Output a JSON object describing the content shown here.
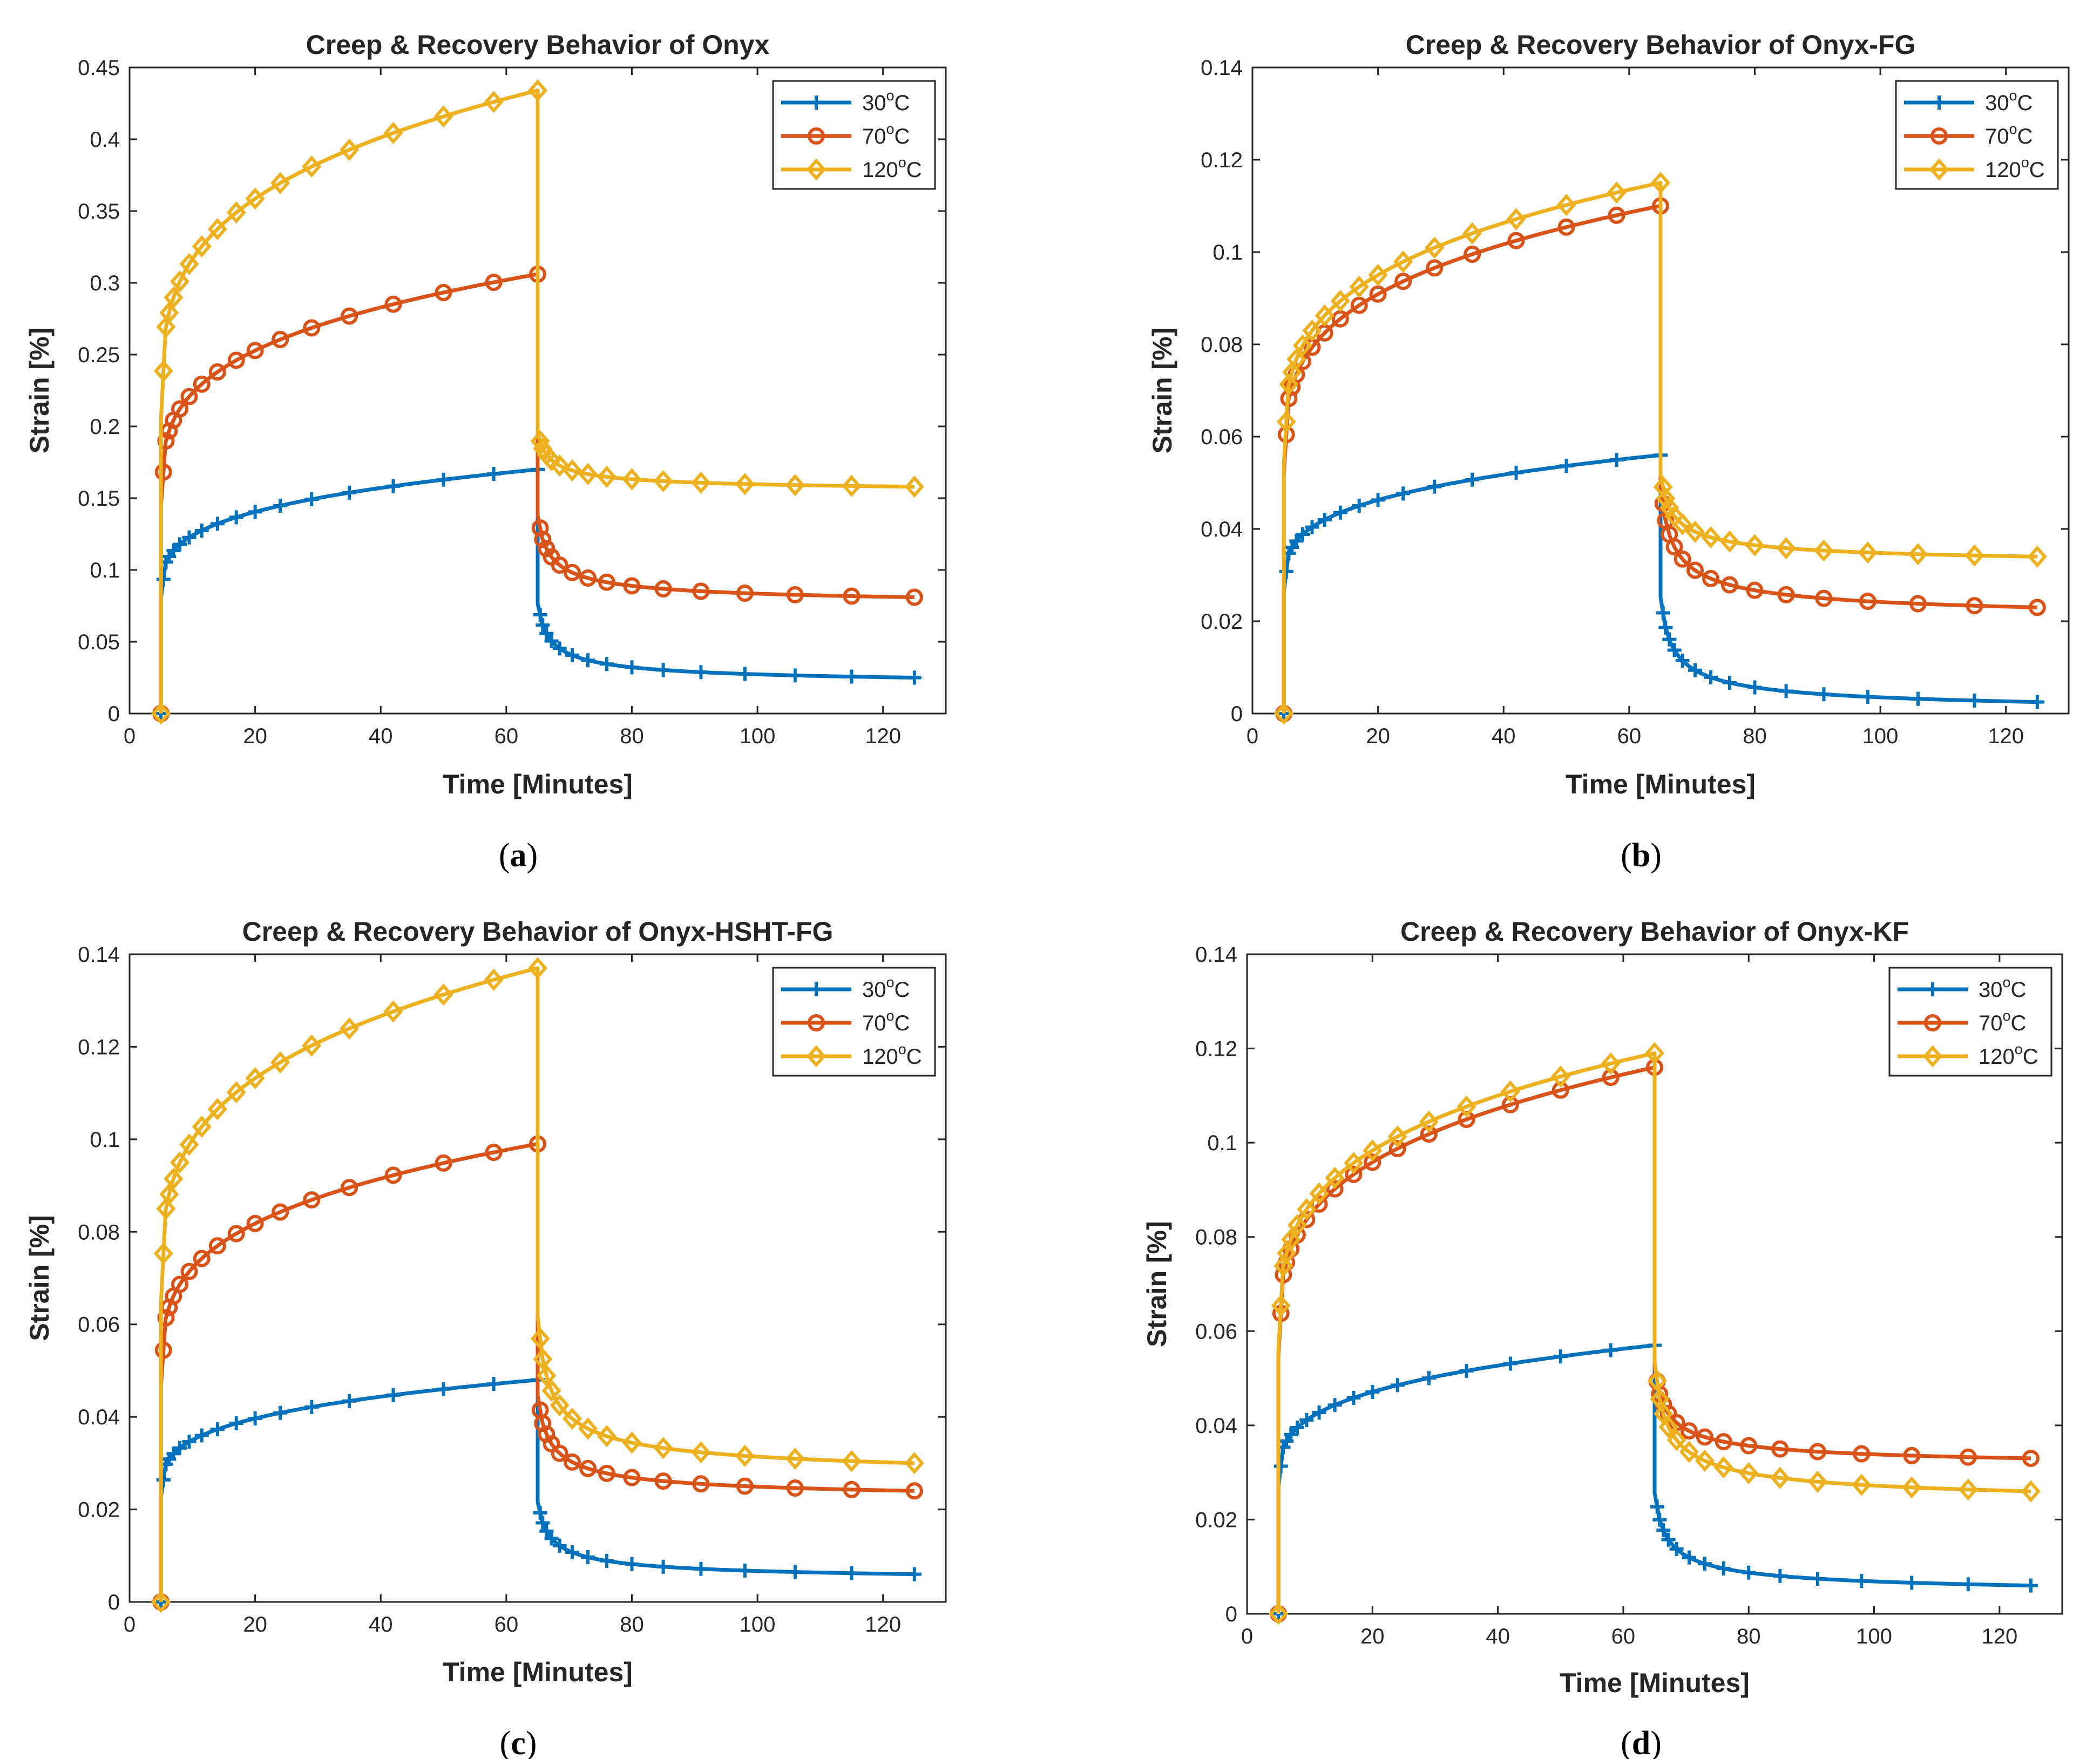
{
  "colors": {
    "c30": "#0072BD",
    "c70": "#D95319",
    "c120": "#EDB120",
    "axis": "#262626",
    "grid": "#262626"
  },
  "chart_data": [
    {
      "type": "line",
      "panel": "a",
      "caption": "a",
      "title": "Creep & Recovery Behavior of Onyx",
      "xlabel": "Time [Minutes]",
      "ylabel": "Strain [%]",
      "xlim": [
        0,
        130
      ],
      "ylim": [
        0,
        0.45
      ],
      "xticks": [
        "0",
        "20",
        "40",
        "60",
        "80",
        "100",
        "120"
      ],
      "yticks": [
        "0",
        "0.05",
        "0.1",
        "0.15",
        "0.2",
        "0.25",
        "0.3",
        "0.35",
        "0.4",
        "0.45"
      ],
      "legend_position": "top-right",
      "series": [
        {
          "name": "30",
          "unit": "C",
          "degree": "o",
          "final": 0.17,
          "recovery": 0.025
        },
        {
          "name": "70",
          "unit": "C",
          "degree": "o",
          "final": 0.306,
          "recovery": 0.081
        },
        {
          "name": "120",
          "unit": "C",
          "degree": "o",
          "final": 0.434,
          "recovery": 0.158
        }
      ]
    },
    {
      "type": "line",
      "panel": "b",
      "caption": "b",
      "title": "Creep & Recovery Behavior of Onyx-FG",
      "xlabel": "Time [Minutes]",
      "ylabel": "Strain [%]",
      "xlim": [
        0,
        130
      ],
      "ylim": [
        0,
        0.14
      ],
      "xticks": [
        "0",
        "20",
        "40",
        "60",
        "80",
        "100",
        "120"
      ],
      "yticks": [
        "0",
        "0.02",
        "0.04",
        "0.06",
        "0.08",
        "0.1",
        "0.12",
        "0.14"
      ],
      "legend_position": "top-right",
      "series": [
        {
          "name": "30",
          "unit": "C",
          "degree": "o",
          "final": 0.056,
          "recovery": 0.0025
        },
        {
          "name": "70",
          "unit": "C",
          "degree": "o",
          "final": 0.11,
          "recovery": 0.023
        },
        {
          "name": "120",
          "unit": "C",
          "degree": "o",
          "final": 0.115,
          "recovery": 0.034
        }
      ]
    },
    {
      "type": "line",
      "panel": "c",
      "caption": "c",
      "title": "Creep & Recovery Behavior of Onyx-HSHT-FG",
      "xlabel": "Time [Minutes]",
      "ylabel": "Strain [%]",
      "xlim": [
        0,
        130
      ],
      "ylim": [
        0,
        0.14
      ],
      "xticks": [
        "0",
        "20",
        "40",
        "60",
        "80",
        "100",
        "120"
      ],
      "yticks": [
        "0",
        "0.02",
        "0.04",
        "0.06",
        "0.08",
        "0.1",
        "0.12",
        "0.14"
      ],
      "legend_position": "top-right",
      "series": [
        {
          "name": "30",
          "unit": "C",
          "degree": "o",
          "final": 0.048,
          "recovery": 0.006
        },
        {
          "name": "70",
          "unit": "C",
          "degree": "o",
          "final": 0.099,
          "recovery": 0.024
        },
        {
          "name": "120",
          "unit": "C",
          "degree": "o",
          "final": 0.137,
          "recovery": 0.03
        }
      ]
    },
    {
      "type": "line",
      "panel": "d",
      "caption": "d",
      "title": "Creep & Recovery Behavior of Onyx-KF",
      "xlabel": "Time [Minutes]",
      "ylabel": "Strain [%]",
      "xlim": [
        0,
        130
      ],
      "ylim": [
        0,
        0.14
      ],
      "xticks": [
        "0",
        "20",
        "40",
        "60",
        "80",
        "100",
        "120"
      ],
      "yticks": [
        "0",
        "0.02",
        "0.04",
        "0.06",
        "0.08",
        "0.1",
        "0.12",
        "0.14"
      ],
      "legend_position": "top-right",
      "series": [
        {
          "name": "30",
          "unit": "C",
          "degree": "o",
          "final": 0.057,
          "recovery": 0.006
        },
        {
          "name": "70",
          "unit": "C",
          "degree": "o",
          "final": 0.116,
          "recovery": 0.033
        },
        {
          "name": "120",
          "unit": "C",
          "degree": "o",
          "final": 0.119,
          "recovery": 0.026
        }
      ]
    }
  ]
}
